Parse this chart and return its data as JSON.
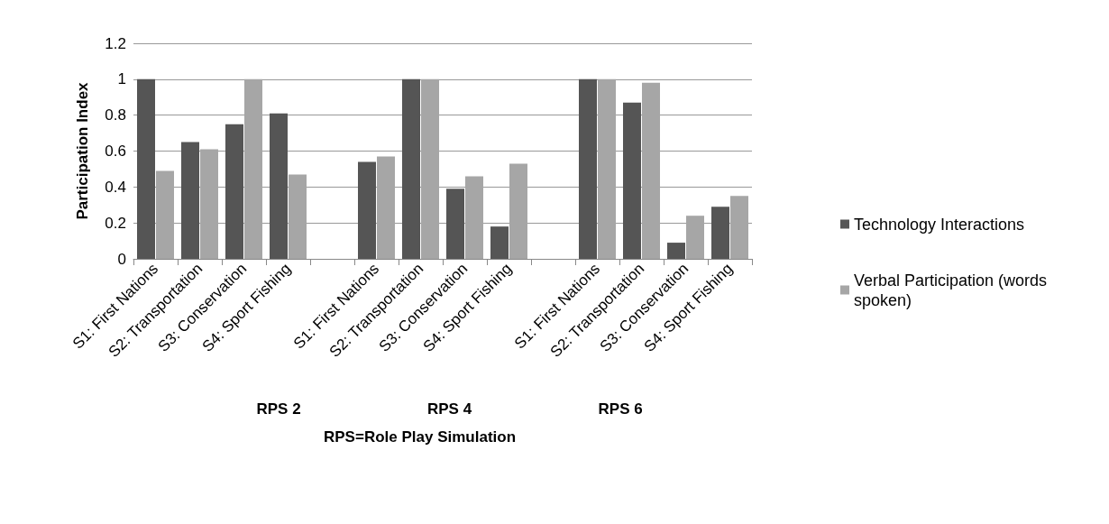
{
  "chart_data": {
    "type": "bar",
    "categories": [
      "S1: First Nations",
      "S2: Transportation",
      "S3: Conservation",
      "S4: Sport Fishing",
      null,
      "S1: First Nations",
      "S2: Transportation",
      "S3: Conservation",
      "S4: Sport Fishing",
      null,
      "S1: First Nations",
      "S2: Transportation",
      "S3: Conservation",
      "S4: Sport Fishing"
    ],
    "series": [
      {
        "name": "Technology Interactions",
        "color": "#555555",
        "values": [
          1,
          0.65,
          0.75,
          0.81,
          null,
          0.54,
          1,
          0.39,
          0.18,
          null,
          1,
          0.87,
          0.09,
          0.29
        ]
      },
      {
        "name": "Verbal Participation (words spoken)",
        "color": "#a6a6a6",
        "values": [
          0.49,
          0.61,
          1,
          0.47,
          null,
          0.57,
          1,
          0.46,
          0.53,
          null,
          1,
          0.98,
          0.24,
          0.35
        ]
      }
    ],
    "ylabel": "Participation Index",
    "xlabel": "RPS=Role Play Simulation",
    "annotations": [
      "RPS 2",
      "RPS 4",
      "RPS 6"
    ],
    "ylim": [
      0,
      1.2
    ],
    "yticks": [
      0,
      0.2,
      0.4,
      0.6,
      0.8,
      1,
      1.2
    ],
    "grid": "y",
    "legend": "right"
  }
}
